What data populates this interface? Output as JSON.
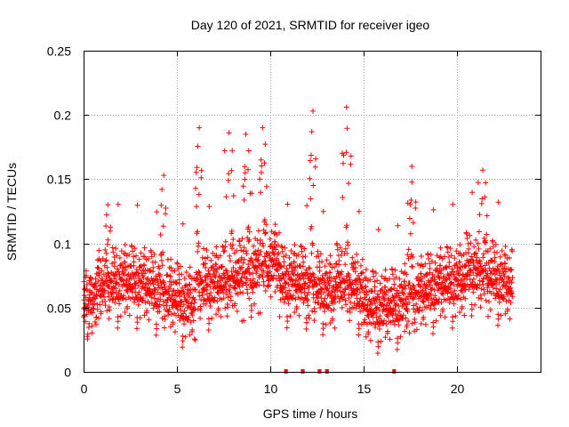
{
  "chart_data": {
    "type": "scatter",
    "title": "Day 120 of 2021, SRMTID for receiver igeo",
    "xlabel": "GPS time / hours",
    "ylabel": "SRMTID / TECUs",
    "xlim": [
      0,
      24.5
    ],
    "ylim": [
      0,
      0.25
    ],
    "x_ticks": [
      0,
      5,
      10,
      15,
      20
    ],
    "x_tick_labels": [
      "0",
      "5",
      "10",
      "15",
      "20"
    ],
    "y_ticks": [
      0,
      0.05,
      0.1,
      0.15,
      0.2,
      0.25
    ],
    "y_tick_labels": [
      "0",
      "0.05",
      "0.1",
      "0.15",
      "0.2",
      "0.25"
    ],
    "grid": true,
    "marker": "plus",
    "color": "#ff0000",
    "data_gaps_at_zero": [
      {
        "x_start": 10.75,
        "x_end": 10.95
      },
      {
        "x_start": 11.65,
        "x_end": 11.85
      },
      {
        "x_start": 12.55,
        "x_end": 12.75
      },
      {
        "x_start": 12.95,
        "x_end": 13.15
      },
      {
        "x_start": 16.55,
        "x_end": 16.75
      }
    ],
    "envelope_description_hours": [
      0,
      23
    ],
    "series": [
      {
        "name": "SRMTID",
        "x_range": [
          0,
          23
        ],
        "typical_range": [
          0.03,
          0.1
        ],
        "notable_peaks": [
          {
            "x": 1.3,
            "y": 0.13
          },
          {
            "x": 4.3,
            "y": 0.153
          },
          {
            "x": 6.2,
            "y": 0.19
          },
          {
            "x": 7.8,
            "y": 0.186
          },
          {
            "x": 8.7,
            "y": 0.185
          },
          {
            "x": 9.6,
            "y": 0.19
          },
          {
            "x": 12.3,
            "y": 0.203
          },
          {
            "x": 14.1,
            "y": 0.206
          },
          {
            "x": 17.6,
            "y": 0.16
          },
          {
            "x": 21.4,
            "y": 0.157
          }
        ]
      }
    ]
  }
}
